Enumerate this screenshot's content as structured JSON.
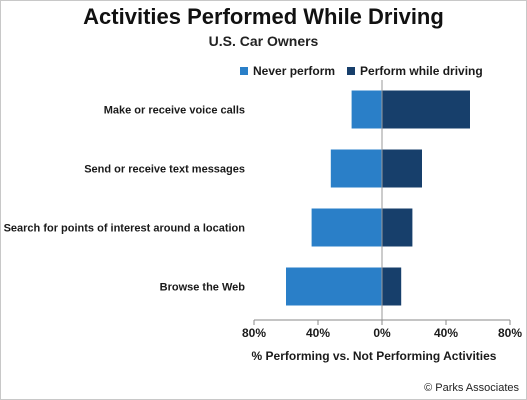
{
  "chart_data": {
    "type": "bar",
    "orientation": "horizontal",
    "stacking": "diverging",
    "title": "Activities Performed While Driving",
    "subtitle": "U.S. Car Owners",
    "categories": [
      "Make or receive voice calls",
      "Send or receive text messages",
      "Search for points of interest around a location",
      "Browse the Web"
    ],
    "series": [
      {
        "name": "Never perform",
        "values": [
          -19,
          -32,
          -44,
          -60
        ],
        "color": "#2a7fc8"
      },
      {
        "name": "Perform while driving",
        "values": [
          55,
          25,
          19,
          12
        ],
        "color": "#173f6b"
      }
    ],
    "xlim": [
      -80,
      80
    ],
    "xticks": [
      -80,
      -40,
      0,
      40,
      80
    ],
    "xtick_labels": [
      "80%",
      "40%",
      "0%",
      "40%",
      "80%"
    ],
    "xlabel": "% Performing vs. Not Performing Activities",
    "ylabel": "",
    "legend_position": "top-right",
    "grid": false
  },
  "footer": {
    "copyright": "© Parks Associates"
  }
}
